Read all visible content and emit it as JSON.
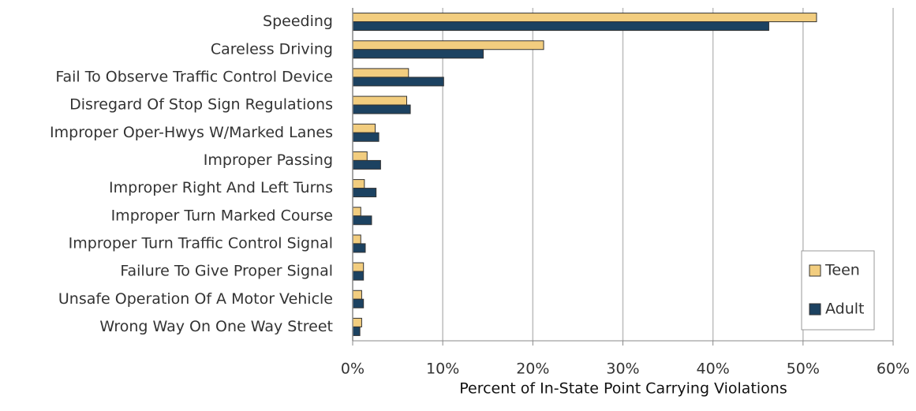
{
  "chart_data": {
    "type": "hbar",
    "x_label": "Percent of In-State Point Carrying Violations",
    "categories": [
      "Speeding",
      "Careless Driving",
      "Fail To Observe Traffic Control Device",
      "Disregard Of Stop Sign Regulations",
      "Improper Oper-Hwys W/Marked Lanes",
      "Improper Passing",
      "Improper Right And Left Turns",
      "Improper Turn Marked Course",
      "Improper Turn Traffic Control Signal",
      "Failure To Give Proper Signal",
      "Unsafe Operation Of A Motor Vehicle",
      "Wrong Way On One Way Street"
    ],
    "series": [
      {
        "name": "Teen",
        "color": "#f2cd7f",
        "values": [
          51.5,
          21.2,
          6.2,
          6.0,
          2.5,
          1.6,
          1.3,
          0.9,
          0.9,
          1.2,
          1.0,
          1.0
        ]
      },
      {
        "name": "Adult",
        "color": "#1c4261",
        "values": [
          46.2,
          14.5,
          10.1,
          6.4,
          2.9,
          3.1,
          2.6,
          2.1,
          1.4,
          1.2,
          1.2,
          0.8
        ]
      }
    ],
    "xlim": [
      0,
      60
    ],
    "xticks": [
      {
        "value": 0,
        "label": "0%"
      },
      {
        "value": 10,
        "label": "10%"
      },
      {
        "value": 20,
        "label": "20%"
      },
      {
        "value": 30,
        "label": "30%"
      },
      {
        "value": 40,
        "label": "40%"
      },
      {
        "value": 50,
        "label": "50%"
      },
      {
        "value": 60,
        "label": "60%"
      }
    ],
    "grid": true,
    "legend": "lower right"
  }
}
